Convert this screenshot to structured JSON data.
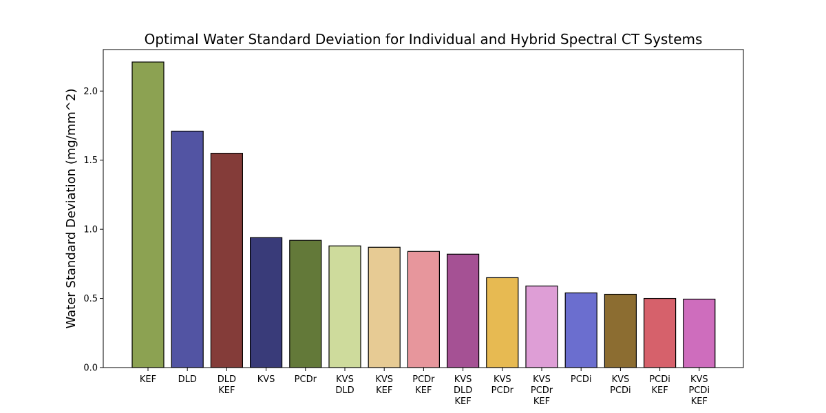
{
  "chart_data": {
    "type": "bar",
    "title": "Optimal Water Standard Deviation for Individual and Hybrid Spectral CT Systems",
    "xlabel": "",
    "ylabel": "Water Standard Deviation (mg/mm^2)",
    "ylim": [
      0,
      2.3
    ],
    "yticks": [
      0.0,
      0.5,
      1.0,
      1.5,
      2.0
    ],
    "ytick_labels": [
      "0.0",
      "0.5",
      "1.0",
      "1.5",
      "2.0"
    ],
    "grid": false,
    "categories": [
      [
        "KEF"
      ],
      [
        "DLD"
      ],
      [
        "DLD",
        "KEF"
      ],
      [
        "KVS"
      ],
      [
        "PCDr"
      ],
      [
        "KVS",
        "DLD"
      ],
      [
        "KVS",
        "KEF"
      ],
      [
        "PCDr",
        "KEF"
      ],
      [
        "KVS",
        "DLD",
        "KEF"
      ],
      [
        "KVS",
        "PCDr"
      ],
      [
        "KVS",
        "PCDr",
        "KEF"
      ],
      [
        "PCDi"
      ],
      [
        "KVS",
        "PCDi"
      ],
      [
        "PCDi",
        "KEF"
      ],
      [
        "KVS",
        "PCDi",
        "KEF"
      ]
    ],
    "values": [
      2.21,
      1.71,
      1.55,
      0.94,
      0.92,
      0.88,
      0.87,
      0.84,
      0.82,
      0.65,
      0.59,
      0.54,
      0.53,
      0.5,
      0.495
    ],
    "colors": [
      "#8ca252",
      "#5254a3",
      "#843c39",
      "#393b79",
      "#637939",
      "#cedb9c",
      "#e7cb94",
      "#e7969c",
      "#a55194",
      "#e7ba52",
      "#de9ed6",
      "#6b6ecf",
      "#8c6d31",
      "#d6616b",
      "#ce6dbd"
    ]
  }
}
